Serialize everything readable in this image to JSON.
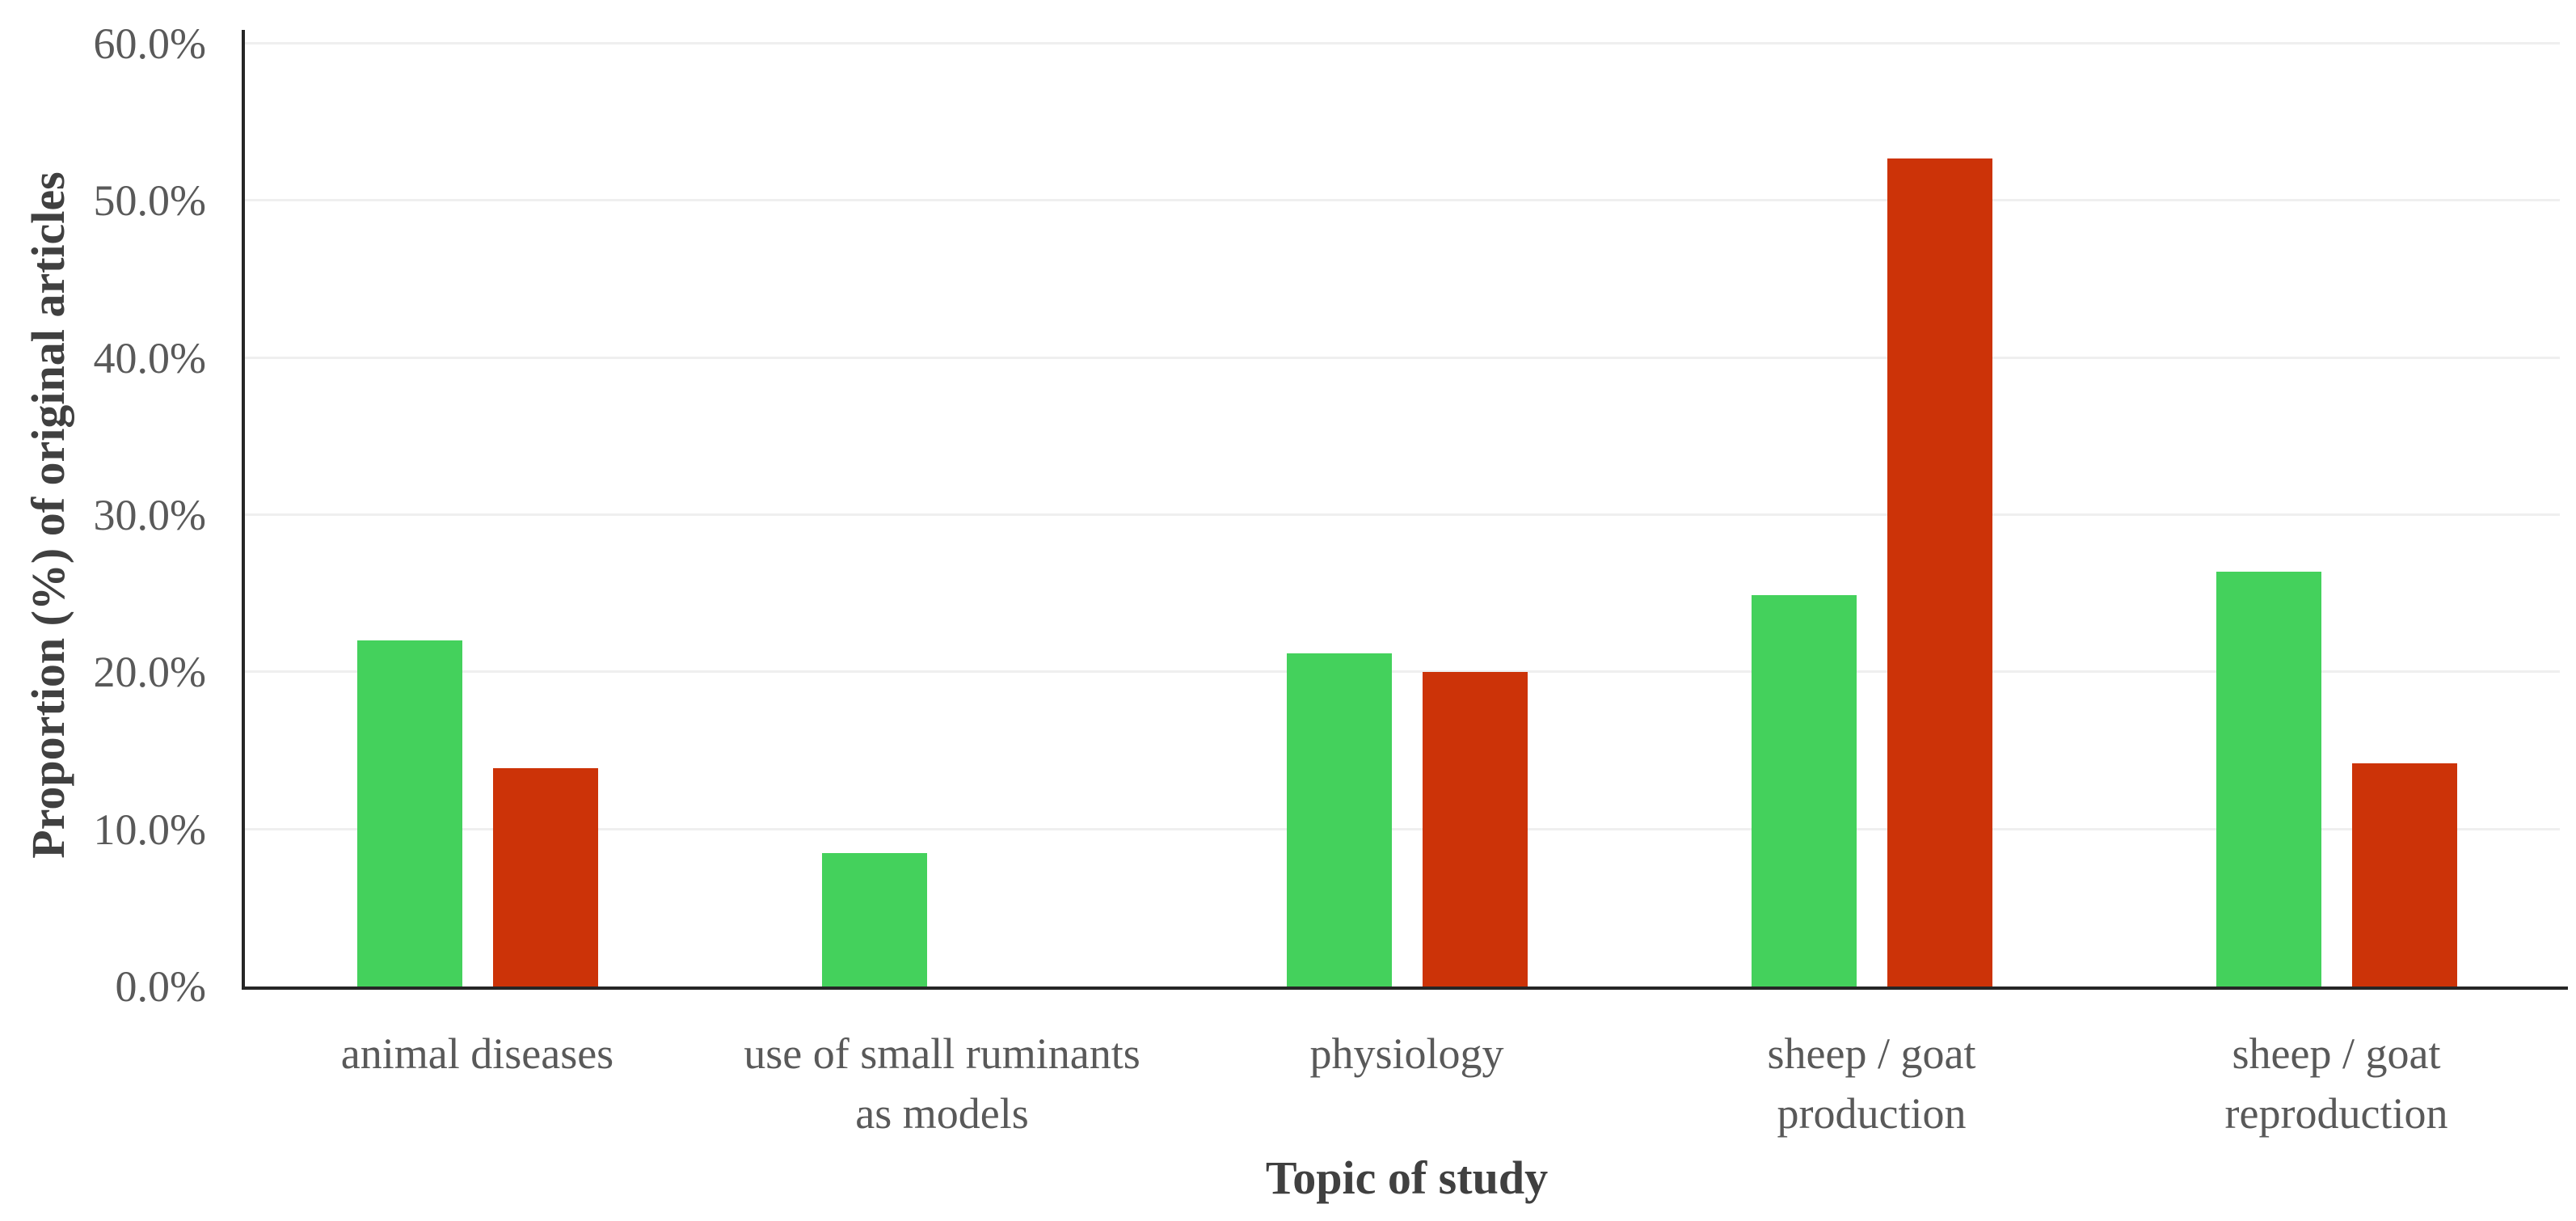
{
  "chart_data": {
    "type": "bar",
    "title": "",
    "xlabel": "Topic of study",
    "ylabel": "Proportion (%) of original articles",
    "categories": [
      [
        "animal diseases"
      ],
      [
        "use of small ruminants",
        "as models"
      ],
      [
        "physiology"
      ],
      [
        "sheep / goat",
        "production"
      ],
      [
        "sheep / goat",
        "reproduction"
      ]
    ],
    "category_keys": [
      "animal-diseases",
      "small-ruminants-as-models",
      "physiology",
      "sheep-goat-production",
      "sheep-goat-reproduction"
    ],
    "series": [
      {
        "name": "green-series",
        "color": "#44d15c",
        "values": [
          22.0,
          8.5,
          21.2,
          24.9,
          26.4
        ]
      },
      {
        "name": "red-series",
        "color": "#cc3308",
        "values": [
          13.9,
          0.0,
          20.0,
          52.7,
          14.2
        ]
      }
    ],
    "ylim": [
      0,
      60
    ],
    "ytick_step": 10,
    "yticks": [
      "0.0%",
      "10.0%",
      "20.0%",
      "30.0%",
      "40.0%",
      "50.0%",
      "60.0%"
    ],
    "grid": "horizontal",
    "legend": "none"
  },
  "styles": {
    "gridline_color": "#efefef",
    "axis_color": "#262626",
    "tick_text_color": "#595959",
    "title_text_color": "#404040",
    "background": "#ffffff"
  }
}
